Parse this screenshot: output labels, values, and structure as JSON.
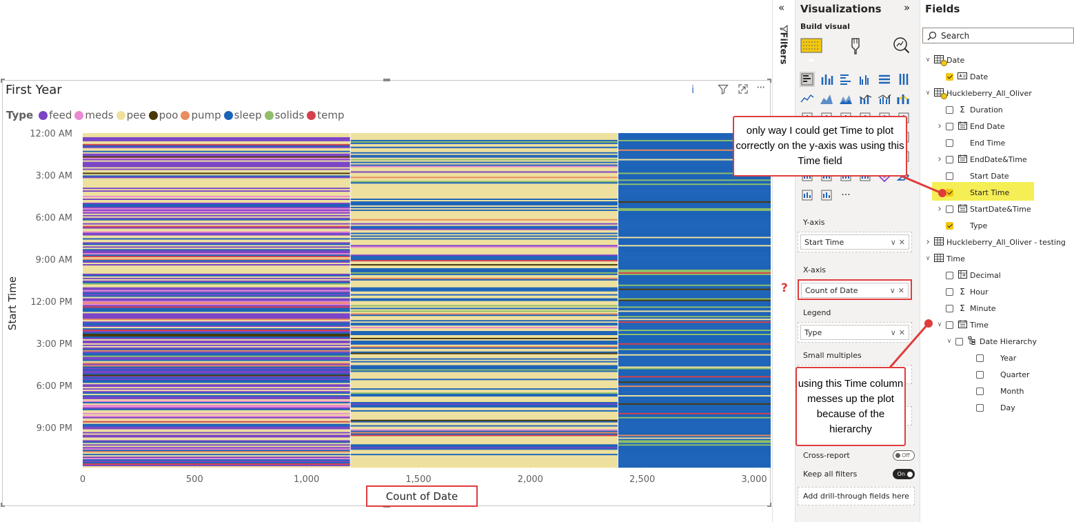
{
  "visual": {
    "title": "First Year",
    "info_icon": "info-icon",
    "filter_icon": "filter-icon",
    "focus_icon": "focus-mode-icon",
    "more_icon": "more-options-icon"
  },
  "legend": {
    "title": "Type",
    "items": [
      {
        "label": "feed",
        "color": "#7b45c6"
      },
      {
        "label": "meds",
        "color": "#e98bd0"
      },
      {
        "label": "pee",
        "color": "#eee09e"
      },
      {
        "label": "poo",
        "color": "#4a3a0a"
      },
      {
        "label": "pump",
        "color": "#e98c5e"
      },
      {
        "label": "sleep",
        "color": "#1d63b8"
      },
      {
        "label": "solids",
        "color": "#8fbf6a"
      },
      {
        "label": "temp",
        "color": "#d6404e"
      }
    ]
  },
  "chart_data": {
    "type": "bar",
    "orientation": "horizontal-stacked",
    "xlabel": "Count of Date",
    "ylabel": "Start Time",
    "x_ticks": [
      "0",
      "500",
      "1,000",
      "1,500",
      "2,000",
      "2,500",
      "3,000"
    ],
    "xlim": [
      0,
      3000
    ],
    "y_ticks": [
      "12:00 AM",
      "3:00 AM",
      "6:00 AM",
      "9:00 AM",
      "12:00 PM",
      "3:00 PM",
      "6:00 PM",
      "9:00 PM"
    ],
    "grid": "vertical-dotted",
    "legend_position": "top-left",
    "max_bar_extent_approx": 2710
  },
  "filters": {
    "label": "Filters",
    "collapse_icon": "double-chevron-left-icon"
  },
  "viz_pane": {
    "title": "Visualizations",
    "expand_icon": "double-chevron-right-icon",
    "build_label": "Build visual",
    "wells": [
      {
        "label": "Y-axis",
        "field": "Start Time"
      },
      {
        "label": "X-axis",
        "field": "Count of Date"
      },
      {
        "label": "Legend",
        "field": "Type"
      }
    ],
    "small_multiples": "Small multiples",
    "cross_report": "Cross-report",
    "cross_report_state": "Off",
    "keep_filters": "Keep all filters",
    "keep_filters_state": "On",
    "drill_through": "Add drill-through fields here",
    "more_visuals": "···"
  },
  "fields_pane": {
    "title": "Fields",
    "search_placeholder": "Search",
    "tree": [
      {
        "label": "Date",
        "kind": "table",
        "expanded": true,
        "checked": true
      },
      {
        "label": "Date",
        "kind": "field",
        "checked": true
      },
      {
        "label": "Huckleberry_All_Oliver",
        "kind": "table",
        "expanded": true,
        "checked": true
      },
      {
        "label": "Duration",
        "kind": "measure",
        "checked": false
      },
      {
        "label": "End Date",
        "kind": "date",
        "checked": false
      },
      {
        "label": "End Time",
        "kind": "field",
        "checked": false
      },
      {
        "label": "EndDate&Time",
        "kind": "date",
        "checked": false
      },
      {
        "label": "Start Date",
        "kind": "field",
        "checked": false
      },
      {
        "label": "Start Time",
        "kind": "field",
        "checked": true
      },
      {
        "label": "StartDate&Time",
        "kind": "date",
        "checked": false
      },
      {
        "label": "Type",
        "kind": "field",
        "checked": true
      },
      {
        "label": "Huckleberry_All_Oliver - testing",
        "kind": "table",
        "expanded": false,
        "checked": false
      },
      {
        "label": "Time",
        "kind": "table",
        "expanded": true,
        "checked": false
      },
      {
        "label": "Decimal",
        "kind": "calc",
        "checked": false
      },
      {
        "label": "Hour",
        "kind": "measure",
        "checked": false
      },
      {
        "label": "Minute",
        "kind": "measure",
        "checked": false
      },
      {
        "label": "Time",
        "kind": "date",
        "checked": false
      },
      {
        "label": "Date Hierarchy",
        "kind": "hierarchy",
        "checked": false
      },
      {
        "label": "Year",
        "kind": "level",
        "checked": false
      },
      {
        "label": "Quarter",
        "kind": "level",
        "checked": false
      },
      {
        "label": "Month",
        "kind": "level",
        "checked": false
      },
      {
        "label": "Day",
        "kind": "level",
        "checked": false
      }
    ]
  },
  "annotations": {
    "callout_top": "only way I could get Time to plot correctly on the y-axis was using this Time field",
    "callout_bottom": "using this Time column messes up the plot because of the hierarchy",
    "question_mark": "?"
  }
}
